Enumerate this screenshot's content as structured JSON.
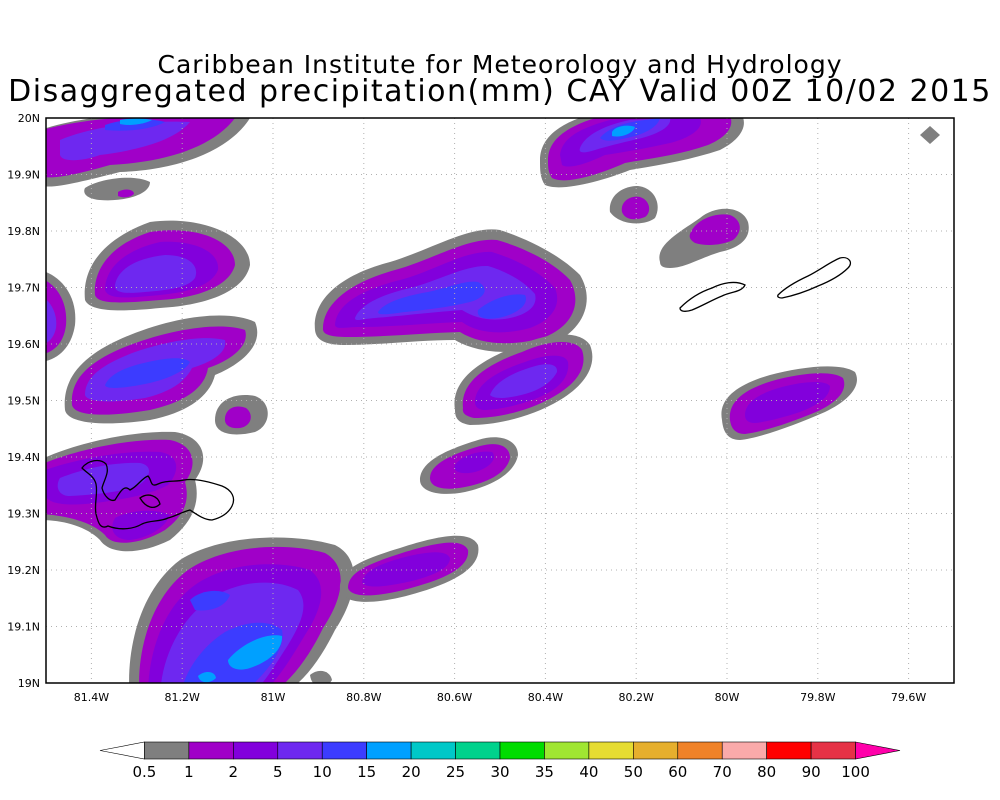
{
  "title": {
    "line1": "Caribbean Institute for Meteorology and Hydrology",
    "line2": "Disaggregated precipitation(mm) CAY Valid 00Z 10/02 2015"
  },
  "map": {
    "lon_range": [
      -81.5,
      -79.5
    ],
    "lat_range": [
      19.0,
      20.0
    ],
    "x_ticks": [
      {
        "value": -81.4,
        "label": "81.4W"
      },
      {
        "value": -81.2,
        "label": "81.2W"
      },
      {
        "value": -81.0,
        "label": "81W"
      },
      {
        "value": -80.8,
        "label": "80.8W"
      },
      {
        "value": -80.6,
        "label": "80.6W"
      },
      {
        "value": -80.4,
        "label": "80.4W"
      },
      {
        "value": -80.2,
        "label": "80.2W"
      },
      {
        "value": -80.0,
        "label": "80W"
      },
      {
        "value": -79.8,
        "label": "79.8W"
      },
      {
        "value": -79.6,
        "label": "79.6W"
      }
    ],
    "y_ticks": [
      {
        "value": 20.0,
        "label": "20N"
      },
      {
        "value": 19.9,
        "label": "19.9N"
      },
      {
        "value": 19.8,
        "label": "19.8N"
      },
      {
        "value": 19.7,
        "label": "19.7N"
      },
      {
        "value": 19.6,
        "label": "19.6N"
      },
      {
        "value": 19.5,
        "label": "19.5N"
      },
      {
        "value": 19.4,
        "label": "19.4N"
      },
      {
        "value": 19.3,
        "label": "19.3N"
      },
      {
        "value": 19.2,
        "label": "19.2N"
      },
      {
        "value": 19.1,
        "label": "19.1N"
      },
      {
        "value": 19.0,
        "label": "19N"
      }
    ],
    "grid": "dotted",
    "islands": [
      "Grand Cayman",
      "Little Cayman",
      "Cayman Brac"
    ]
  },
  "colorbar": {
    "colors": [
      "#ffffff",
      "#7f7f7f",
      "#a000c8",
      "#8200dc",
      "#6e28f0",
      "#3c3cff",
      "#00a0ff",
      "#00c8c8",
      "#00d28c",
      "#00dc00",
      "#a0e632",
      "#e6dc32",
      "#e6af2d",
      "#f08228",
      "#faaaaa",
      "#ff0000",
      "#e63246",
      "#ff00aa"
    ],
    "labels": [
      "0.5",
      "1",
      "2",
      "5",
      "10",
      "15",
      "20",
      "25",
      "30",
      "35",
      "40",
      "50",
      "60",
      "70",
      "80",
      "90",
      "100"
    ]
  },
  "chart_data": {
    "type": "heatmap",
    "title": "Caribbean Institute for Meteorology and Hydrology / Disaggregated precipitation(mm) CAY Valid 00Z 10/02 2015",
    "xlim": [
      -81.5,
      -79.5
    ],
    "ylim": [
      19.0,
      20.0
    ],
    "units": "mm",
    "levels": [
      0.5,
      1,
      2,
      5,
      10,
      15,
      20,
      25,
      30,
      35,
      40,
      50,
      60,
      70,
      80,
      90,
      100
    ],
    "max_observed_level_range": [
      15,
      20
    ],
    "cells": [
      {
        "lon": -81.32,
        "lat": 19.95,
        "max_level": 15
      },
      {
        "lon": -81.2,
        "lat": 19.7,
        "max_level": 10
      },
      {
        "lon": -81.2,
        "lat": 19.55,
        "max_level": 10
      },
      {
        "lon": -81.48,
        "lat": 19.63,
        "max_level": 10
      },
      {
        "lon": -81.12,
        "lat": 19.48,
        "max_level": 2
      },
      {
        "lon": -81.35,
        "lat": 19.35,
        "max_level": 10
      },
      {
        "lon": -81.23,
        "lat": 19.28,
        "max_level": 2
      },
      {
        "lon": -81.05,
        "lat": 19.12,
        "max_level": 15
      },
      {
        "lon": -80.75,
        "lat": 19.19,
        "max_level": 2
      },
      {
        "lon": -80.65,
        "lat": 19.68,
        "max_level": 10
      },
      {
        "lon": -80.45,
        "lat": 19.53,
        "max_level": 10
      },
      {
        "lon": -80.55,
        "lat": 19.38,
        "max_level": 2
      },
      {
        "lon": -80.22,
        "lat": 19.93,
        "max_level": 15
      },
      {
        "lon": -80.2,
        "lat": 19.84,
        "max_level": 2
      },
      {
        "lon": -80.0,
        "lat": 19.79,
        "max_level": 2
      },
      {
        "lon": -79.84,
        "lat": 19.48,
        "max_level": 2
      },
      {
        "lon": -79.56,
        "lat": 19.97,
        "max_level": 1
      }
    ]
  }
}
